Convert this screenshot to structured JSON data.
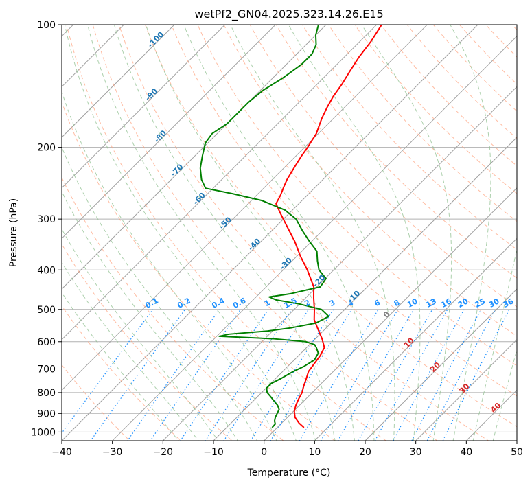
{
  "chart_data": {
    "type": "line",
    "chart_kind": "skew-t log-p diagram",
    "title": "wetPf2_GN04.2025.323.14.26.E15",
    "xlabel": "Temperature (°C)",
    "ylabel": "Pressure (hPa)",
    "xlim": [
      -40,
      50
    ],
    "ylim": [
      1050,
      100
    ],
    "x_ticks": [
      -40,
      -30,
      -20,
      -10,
      0,
      10,
      20,
      30,
      40,
      50
    ],
    "y_ticks": [
      100,
      200,
      300,
      400,
      500,
      600,
      700,
      800,
      900,
      1000
    ],
    "x_tick_labels": [
      "−40",
      "−30",
      "−20",
      "−10",
      "0",
      "10",
      "20",
      "30",
      "40",
      "50"
    ],
    "y_tick_labels": [
      "100",
      "200",
      "300",
      "400",
      "500",
      "600",
      "700",
      "800",
      "900",
      "1000"
    ],
    "grid": true,
    "colors": {
      "temperature": "#ff0000",
      "dewpoint": "#008000",
      "skewed_isotherm": "#a0a0a0",
      "dry_adiabat": "#ffa07a",
      "moist_adiabat": "#90c090",
      "mixing_ratio": "#1e90ff",
      "frame_isotherm_labels": "#1f77b4",
      "warm_isotherm_labels": "#d62728",
      "zero_label": "#808080",
      "outer_arc": "#d2b48c"
    },
    "series": [
      {
        "name": "Temperature",
        "color": "#ff0000",
        "points": [
          {
            "p": 975,
            "t": 5.3
          },
          {
            "p": 950,
            "t": 3.4
          },
          {
            "p": 920,
            "t": 1.5
          },
          {
            "p": 890,
            "t": 0.2
          },
          {
            "p": 860,
            "t": -0.7
          },
          {
            "p": 830,
            "t": -1.4
          },
          {
            "p": 800,
            "t": -2.0
          },
          {
            "p": 770,
            "t": -3.0
          },
          {
            "p": 740,
            "t": -3.9
          },
          {
            "p": 710,
            "t": -4.9
          },
          {
            "p": 680,
            "t": -5.3
          },
          {
            "p": 650,
            "t": -5.7
          },
          {
            "p": 620,
            "t": -6.5
          },
          {
            "p": 590,
            "t": -8.7
          },
          {
            "p": 560,
            "t": -11.3
          },
          {
            "p": 530,
            "t": -14.0
          },
          {
            "p": 500,
            "t": -16.0
          },
          {
            "p": 470,
            "t": -18.3
          },
          {
            "p": 440,
            "t": -20.6
          },
          {
            "p": 400,
            "t": -25.2
          },
          {
            "p": 370,
            "t": -29.3
          },
          {
            "p": 340,
            "t": -33.4
          },
          {
            "p": 310,
            "t": -38.3
          },
          {
            "p": 290,
            "t": -41.8
          },
          {
            "p": 275,
            "t": -44.5
          },
          {
            "p": 262,
            "t": -45.3
          },
          {
            "p": 250,
            "t": -46.3
          },
          {
            "p": 240,
            "t": -47.1
          },
          {
            "p": 225,
            "t": -48.0
          },
          {
            "p": 210,
            "t": -48.9
          },
          {
            "p": 200,
            "t": -49.4
          },
          {
            "p": 185,
            "t": -50.4
          },
          {
            "p": 170,
            "t": -52.3
          },
          {
            "p": 160,
            "t": -53.4
          },
          {
            "p": 150,
            "t": -54.4
          },
          {
            "p": 140,
            "t": -55.1
          },
          {
            "p": 130,
            "t": -56.1
          },
          {
            "p": 120,
            "t": -57.1
          },
          {
            "p": 110,
            "t": -57.8
          },
          {
            "p": 100,
            "t": -59.0
          }
        ]
      },
      {
        "name": "Dewpoint",
        "color": "#008000",
        "points": [
          {
            "p": 975,
            "t": -1.0
          },
          {
            "p": 955,
            "t": -1.1
          },
          {
            "p": 940,
            "t": -1.8
          },
          {
            "p": 920,
            "t": -2.4
          },
          {
            "p": 900,
            "t": -2.8
          },
          {
            "p": 880,
            "t": -3.2
          },
          {
            "p": 860,
            "t": -4.3
          },
          {
            "p": 840,
            "t": -5.8
          },
          {
            "p": 820,
            "t": -7.3
          },
          {
            "p": 800,
            "t": -8.9
          },
          {
            "p": 780,
            "t": -9.9
          },
          {
            "p": 760,
            "t": -9.9
          },
          {
            "p": 740,
            "t": -9.0
          },
          {
            "p": 710,
            "t": -7.9
          },
          {
            "p": 690,
            "t": -6.8
          },
          {
            "p": 665,
            "t": -6.0
          },
          {
            "p": 640,
            "t": -6.6
          },
          {
            "p": 620,
            "t": -8.1
          },
          {
            "p": 610,
            "t": -9.0
          },
          {
            "p": 600,
            "t": -11.3
          },
          {
            "p": 590,
            "t": -18.5
          },
          {
            "p": 582,
            "t": -29.5
          },
          {
            "p": 575,
            "t": -28.0
          },
          {
            "p": 565,
            "t": -21.0
          },
          {
            "p": 555,
            "t": -17.0
          },
          {
            "p": 540,
            "t": -13.0
          },
          {
            "p": 520,
            "t": -11.8
          },
          {
            "p": 500,
            "t": -14.6
          },
          {
            "p": 485,
            "t": -20.0
          },
          {
            "p": 474,
            "t": -25.4
          },
          {
            "p": 466,
            "t": -27.4
          },
          {
            "p": 458,
            "t": -24.0
          },
          {
            "p": 440,
            "t": -19.3
          },
          {
            "p": 420,
            "t": -19.8
          },
          {
            "p": 400,
            "t": -22.9
          },
          {
            "p": 380,
            "t": -25.0
          },
          {
            "p": 360,
            "t": -27.0
          },
          {
            "p": 340,
            "t": -30.5
          },
          {
            "p": 320,
            "t": -34.0
          },
          {
            "p": 300,
            "t": -37.5
          },
          {
            "p": 285,
            "t": -41.5
          },
          {
            "p": 270,
            "t": -48.0
          },
          {
            "p": 260,
            "t": -55.0
          },
          {
            "p": 252,
            "t": -61.5
          },
          {
            "p": 240,
            "t": -64.0
          },
          {
            "p": 225,
            "t": -66.5
          },
          {
            "p": 210,
            "t": -68.5
          },
          {
            "p": 195,
            "t": -70.5
          },
          {
            "p": 185,
            "t": -71.0
          },
          {
            "p": 175,
            "t": -70.0
          },
          {
            "p": 165,
            "t": -70.0
          },
          {
            "p": 155,
            "t": -70.0
          },
          {
            "p": 145,
            "t": -69.5
          },
          {
            "p": 135,
            "t": -68.0
          },
          {
            "p": 125,
            "t": -67.0
          },
          {
            "p": 118,
            "t": -67.0
          },
          {
            "p": 112,
            "t": -68.0
          },
          {
            "p": 106,
            "t": -70.0
          },
          {
            "p": 100,
            "t": -71.5
          }
        ]
      }
    ],
    "mixing_ratio_labels": [
      "0.1",
      "0.2",
      "0.4",
      "0.6",
      "1",
      "1.5",
      "2",
      "3",
      "4",
      "6",
      "8",
      "10",
      "13",
      "16",
      "20",
      "25",
      "30",
      "36"
    ],
    "mixing_ratio_values": [
      0.1,
      0.2,
      0.4,
      0.6,
      1,
      1.5,
      2,
      3,
      4,
      6,
      8,
      10,
      13,
      16,
      20,
      25,
      30,
      36
    ],
    "frame_isotherm_labels": [
      "-100",
      "-90",
      "-80",
      "-70",
      "-60",
      "-50",
      "-40",
      "-30",
      "-20",
      "-10"
    ],
    "frame_isotherm_values": [
      -100,
      -90,
      -80,
      -70,
      -60,
      -50,
      -40,
      -30,
      -20,
      -10
    ],
    "warm_isotherm_labels": [
      "0",
      "10",
      "20",
      "30",
      "40"
    ],
    "warm_isotherm_values": [
      0,
      10,
      20,
      30,
      40
    ]
  }
}
